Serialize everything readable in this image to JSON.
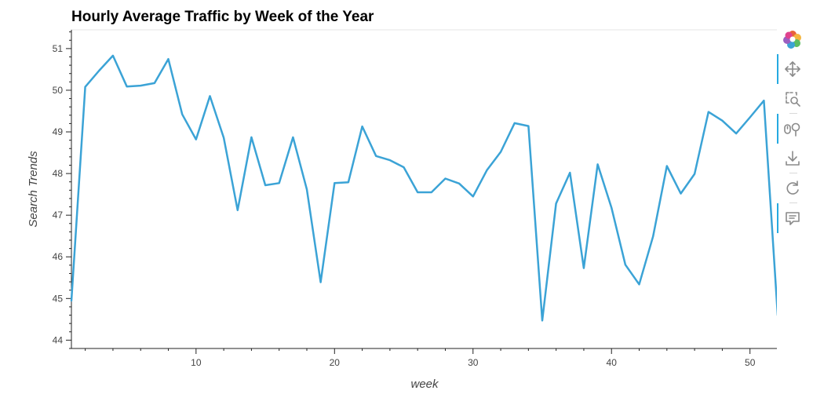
{
  "chart_data": {
    "type": "line",
    "title": "Hourly Average Traffic by Week of the Year",
    "xlabel": "week",
    "ylabel": "Search Trends",
    "xlim": [
      1,
      52
    ],
    "ylim": [
      43.8,
      51.45
    ],
    "x_ticks": [
      10,
      20,
      30,
      40,
      50
    ],
    "y_ticks": [
      44,
      45,
      46,
      47,
      48,
      49,
      50,
      51
    ],
    "grid": false,
    "line_color": "#3ba3d6",
    "series": [
      {
        "x": [
          1,
          2,
          3,
          4,
          5,
          6,
          7,
          8,
          9,
          10,
          11,
          12,
          13,
          14,
          15,
          16,
          17,
          18,
          19,
          20,
          21,
          22,
          23,
          24,
          25,
          26,
          27,
          28,
          29,
          30,
          31,
          32,
          33,
          34,
          35,
          36,
          37,
          38,
          39,
          40,
          41,
          42,
          43,
          44,
          45,
          46,
          47,
          48,
          49,
          50,
          51,
          52
        ],
        "values": [
          44.95,
          50.08,
          50.47,
          50.83,
          50.09,
          50.11,
          50.17,
          50.75,
          49.42,
          48.82,
          49.86,
          48.86,
          47.12,
          48.87,
          47.72,
          47.77,
          48.87,
          47.62,
          45.39,
          47.77,
          47.79,
          49.13,
          48.42,
          48.32,
          48.15,
          47.55,
          47.55,
          47.88,
          47.76,
          47.45,
          48.08,
          48.52,
          49.21,
          49.14,
          44.47,
          47.28,
          48.02,
          45.73,
          48.22,
          47.18,
          45.81,
          45.34,
          46.49,
          48.18,
          47.52,
          47.99,
          49.48,
          49.27,
          48.96,
          49.35,
          49.75,
          44.6
        ]
      }
    ]
  },
  "toolbar": {
    "logo": "bokeh-logo-icon",
    "tools": [
      "pan-icon",
      "box-zoom-icon",
      "wheel-zoom-icon",
      "save-icon",
      "reset-icon",
      "hover-icon"
    ]
  }
}
